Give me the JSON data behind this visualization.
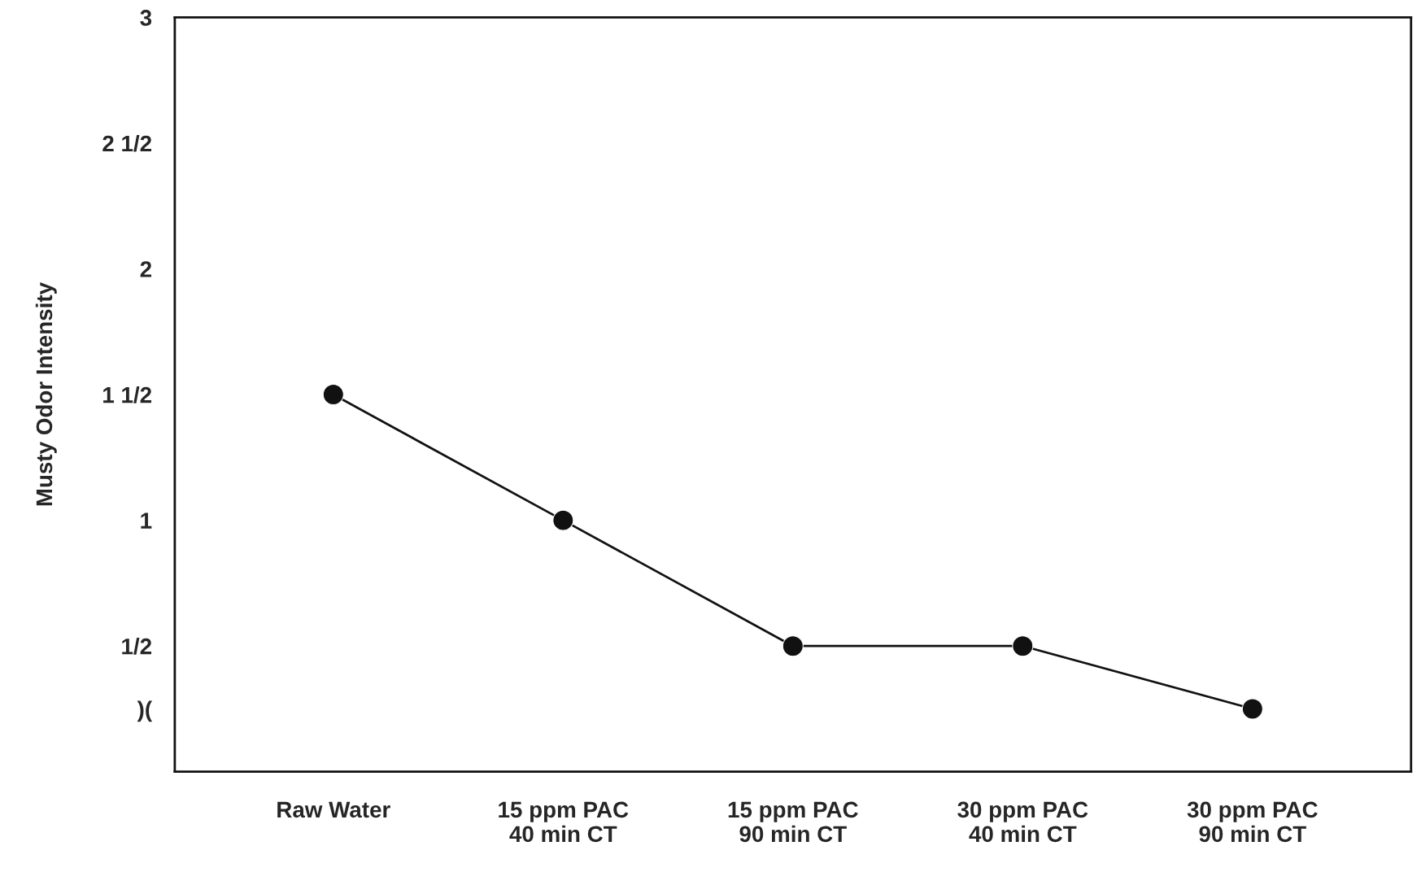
{
  "chart_data": {
    "type": "line",
    "ylabel": "Musty Odor Intensity",
    "categories": [
      "Raw Water",
      "15 ppm PAC\n40 min CT",
      "15 ppm PAC\n90 min CT",
      "30 ppm PAC\n40 min CT",
      "30 ppm PAC\n90 min CT"
    ],
    "series": [
      {
        "color": "#111111",
        "values": [
          1.5,
          1,
          0.5,
          0.5,
          0.25
        ]
      }
    ],
    "ylim": [
      0,
      3
    ],
    "yticks": [
      {
        "value": 0.25,
        "label": ")("
      },
      {
        "value": 0.5,
        "label": "1/2"
      },
      1,
      {
        "value": 1.5,
        "label": "1 1/2"
      },
      2,
      {
        "value": 2.5,
        "label": "2 1/2"
      },
      3
    ],
    "marker": "circle",
    "line_style": "solid",
    "grid": false,
    "legend": false
  }
}
